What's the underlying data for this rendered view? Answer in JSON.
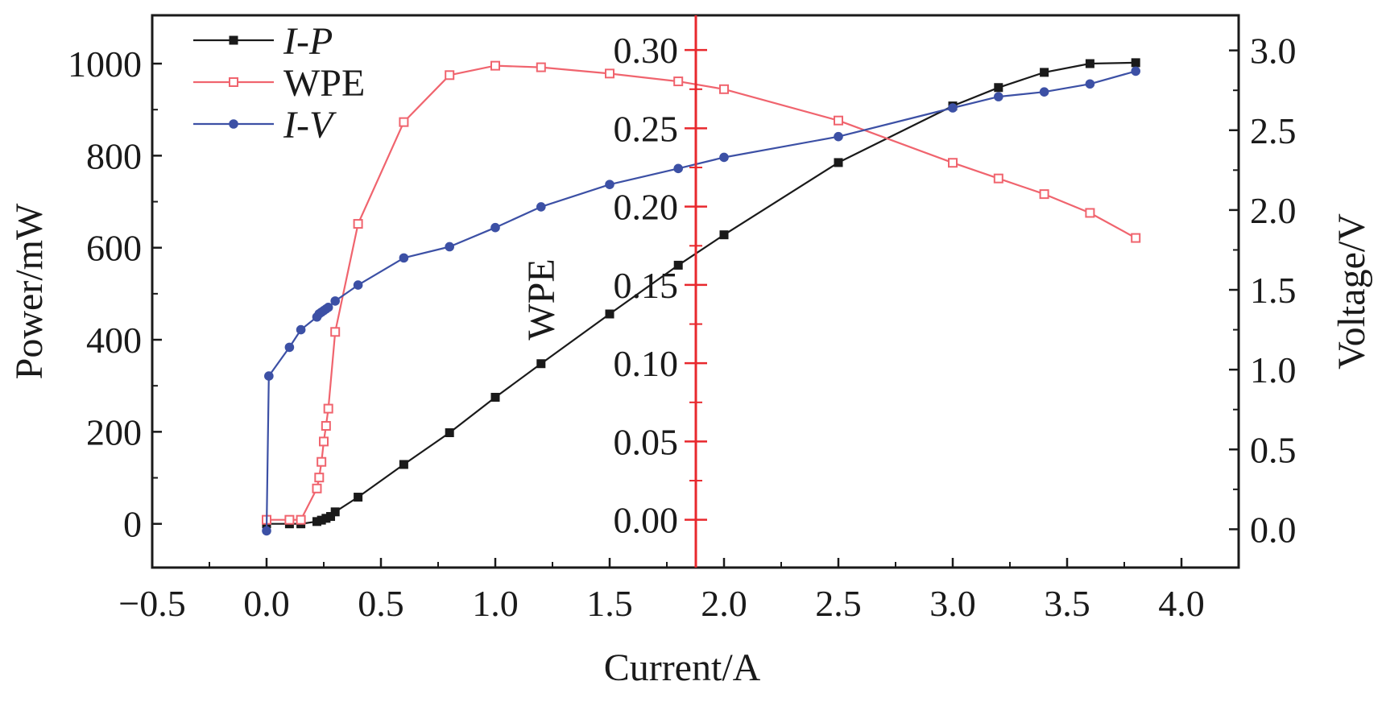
{
  "chart_data": {
    "type": "line",
    "x": {
      "label": "Current/A",
      "range": [
        -0.5,
        4.25
      ],
      "ticks": [
        -0.5,
        0.0,
        0.5,
        1.0,
        1.5,
        2.0,
        2.5,
        3.0,
        3.5,
        4.0
      ],
      "tick_labels": [
        "−0.5",
        "0.0",
        "0.5",
        "1.0",
        "1.5",
        "2.0",
        "2.5",
        "3.0",
        "3.5",
        "4.0"
      ]
    },
    "y_left": {
      "label": "Power/mW",
      "range": [
        -95,
        1105
      ],
      "ticks": [
        0,
        200,
        400,
        600,
        800,
        1000
      ],
      "tick_labels": [
        "0",
        "200",
        "400",
        "600",
        "800",
        "1000"
      ]
    },
    "y_middle": {
      "label": "WPE",
      "position": "x = 1.87 A (red axis)",
      "range": [
        -0.0305,
        0.3222
      ],
      "ticks": [
        0.0,
        0.05,
        0.1,
        0.15,
        0.2,
        0.25,
        0.3
      ],
      "tick_labels": [
        "0.00",
        "0.05",
        "0.10",
        "0.15",
        "0.20",
        "0.25",
        "0.30"
      ]
    },
    "y_right": {
      "label": "Voltage/V",
      "range": [
        -0.24,
        3.22
      ],
      "ticks": [
        0.0,
        0.5,
        1.0,
        1.5,
        2.0,
        2.5,
        3.0
      ],
      "tick_labels": [
        "0.0",
        "0.5",
        "1.0",
        "1.5",
        "2.0",
        "2.5",
        "3.0"
      ]
    },
    "legend_position": "top-left",
    "series": [
      {
        "name": "I-P",
        "axis": "left",
        "color": "#1a1a1a",
        "marker": "filled-square",
        "x": [
          0.0,
          0.1,
          0.15,
          0.22,
          0.24,
          0.26,
          0.28,
          0.3,
          0.4,
          0.6,
          0.8,
          1.0,
          1.2,
          1.5,
          1.8,
          2.0,
          2.5,
          3.0,
          3.2,
          3.4,
          3.6,
          3.8
        ],
        "values": [
          0,
          0,
          0,
          5,
          8,
          12,
          16,
          26,
          58,
          129,
          198,
          275,
          348,
          456,
          562,
          628,
          785,
          908,
          948,
          981,
          1000,
          1002
        ]
      },
      {
        "name": "WPE",
        "axis": "middle",
        "color": "#f0646e",
        "marker": "open-square",
        "x": [
          0.0,
          0.1,
          0.15,
          0.22,
          0.23,
          0.24,
          0.25,
          0.26,
          0.27,
          0.3,
          0.4,
          0.6,
          0.8,
          1.0,
          1.2,
          1.5,
          1.8,
          2.0,
          2.5,
          3.0,
          3.2,
          3.4,
          3.6,
          3.8
        ],
        "values": [
          0.0,
          0.0,
          0.0,
          0.02,
          0.027,
          0.037,
          0.05,
          0.06,
          0.071,
          0.12,
          0.189,
          0.254,
          0.284,
          0.29,
          0.289,
          0.285,
          0.28,
          0.275,
          0.255,
          0.228,
          0.218,
          0.208,
          0.196,
          0.18
        ]
      },
      {
        "name": "I-V",
        "axis": "right",
        "color": "#3c50a5",
        "marker": "filled-circle",
        "x": [
          0.0,
          0.01,
          0.1,
          0.15,
          0.22,
          0.23,
          0.24,
          0.25,
          0.26,
          0.27,
          0.3,
          0.4,
          0.6,
          0.8,
          1.0,
          1.2,
          1.5,
          1.8,
          2.0,
          2.5,
          3.0,
          3.2,
          3.4,
          3.6,
          3.8
        ],
        "values": [
          -0.01,
          0.96,
          1.14,
          1.25,
          1.33,
          1.35,
          1.36,
          1.37,
          1.38,
          1.39,
          1.43,
          1.53,
          1.7,
          1.77,
          1.89,
          2.02,
          2.16,
          2.26,
          2.33,
          2.46,
          2.64,
          2.71,
          2.74,
          2.79,
          2.87
        ]
      }
    ]
  },
  "legend": {
    "items": [
      {
        "text": "I-P",
        "italic": true
      },
      {
        "text": "WPE",
        "italic": false
      },
      {
        "text": "I-V",
        "italic": true
      }
    ]
  },
  "colors": {
    "ip": "#1a1a1a",
    "wpe": "#f0646e",
    "iv": "#3c50a5",
    "middle_axis": "#e8282d",
    "frame": "#1a1a1a"
  }
}
